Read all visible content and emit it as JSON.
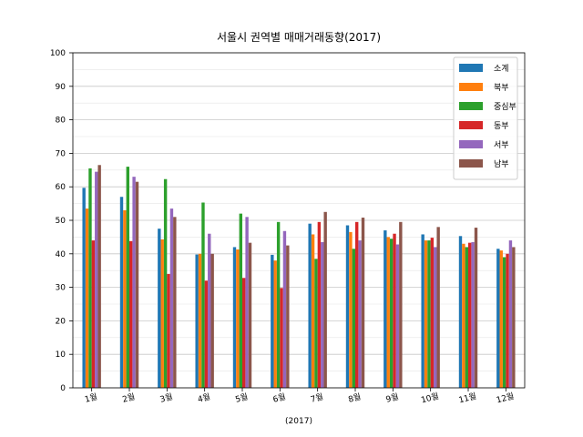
{
  "chart_data": {
    "type": "bar",
    "title": "서울시 권역별 매매거래동향(2017)",
    "xlabel": "(2017)",
    "ylabel": "",
    "ylim": [
      0,
      100
    ],
    "yticks": [
      0,
      10,
      20,
      30,
      40,
      50,
      60,
      70,
      80,
      90,
      100
    ],
    "grid": true,
    "legend_position": "top-right",
    "categories": [
      "1월",
      "2월",
      "3월",
      "4월",
      "5월",
      "6월",
      "7월",
      "8월",
      "9월",
      "10월",
      "11월",
      "12월"
    ],
    "series": [
      {
        "name": "소계",
        "color": "#1f77b4",
        "values": [
          59.7,
          57.0,
          47.5,
          39.8,
          42.0,
          39.7,
          49.0,
          48.5,
          47.0,
          45.8,
          45.3,
          41.5
        ]
      },
      {
        "name": "북부",
        "color": "#ff7f0e",
        "values": [
          53.5,
          53.0,
          44.3,
          40.0,
          41.3,
          38.0,
          45.8,
          46.5,
          45.0,
          44.0,
          43.0,
          41.0
        ]
      },
      {
        "name": "중심부",
        "color": "#2ca02c",
        "values": [
          65.5,
          66.0,
          62.3,
          55.3,
          52.0,
          49.5,
          38.5,
          41.5,
          44.5,
          44.0,
          42.0,
          39.0
        ]
      },
      {
        "name": "동부",
        "color": "#d62728",
        "values": [
          44.0,
          43.8,
          34.0,
          32.0,
          32.8,
          29.8,
          49.5,
          49.5,
          46.0,
          44.8,
          43.3,
          40.0
        ]
      },
      {
        "name": "서부",
        "color": "#9467bd",
        "values": [
          64.5,
          63.0,
          53.5,
          46.0,
          51.0,
          46.8,
          43.5,
          44.0,
          42.8,
          42.0,
          43.5,
          44.0
        ]
      },
      {
        "name": "남부",
        "color": "#8c564b",
        "values": [
          66.5,
          61.5,
          51.0,
          40.0,
          43.3,
          42.5,
          52.5,
          50.8,
          49.5,
          48.0,
          47.8,
          42.0
        ]
      }
    ]
  }
}
